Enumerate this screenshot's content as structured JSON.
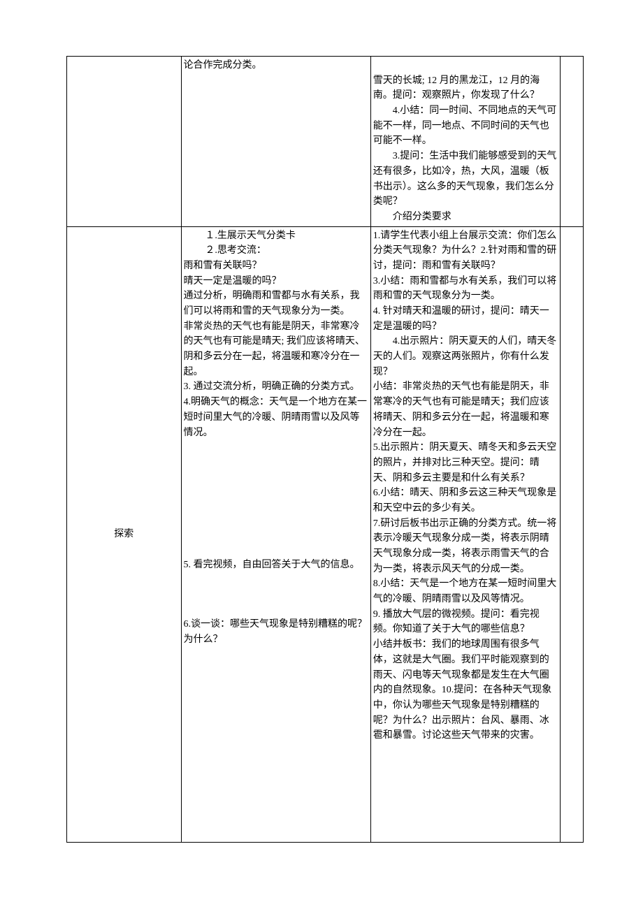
{
  "row1": {
    "col1": "",
    "col2_p1": "论合作完成分类。",
    "col3_p1": "雪天的长城; 12 月的黑龙江，12 月的海南。提问：观察照片，你发现了什么？",
    "col3_p2": "4.小结：同一时间、不同地点的天气可能不一样，同一地点、不同时间的天气也可能不一样。",
    "col3_p3": "3.提问：生活中我们能够感受到的天气还有很多，比如冷，热，大风，温暖（板书出示）。这么多的天气现象，我们怎么分类呢？",
    "col3_p4": "介绍分类要求",
    "col4": ""
  },
  "row2": {
    "col1": "探索",
    "col2": {
      "p1": "１.生展示天气分类卡",
      "p2": "２.思考交流：",
      "p3": "雨和雪有关联吗？",
      "p4": "晴天一定是温暖的吗？",
      "p5": "通过分析，明确雨和雪都与水有关系，我们可以将雨和雪的天气现象分为一类。",
      "p6": "非常炎热的天气也有能是阴天，非常寒冷的天气也有可能是晴天; 我们应该将晴天、阴和多云分在一起，将温暖和寒冷分在一起。",
      "p7": "3. 通过交流分析，明确正确的分类方式。",
      "p8": "4.明确天气的概念：天气是一个地方在某一短时间里大气的冷暖、阴晴雨雪以及风等情况。",
      "p9": "5. 看完视频，自由回答关于大气的信息。",
      "p10": "6.谈一谈：哪些天气现象是特别糟糕的呢？为什么？"
    },
    "col3": {
      "p1": "1.请学生代表小组上台展示交流：你们怎么分类天气现象？为什么？2.针对雨和雪的研讨，提问：雨和雪有关联吗？",
      "p2": "3.小结：雨和雪都与水有关系，我们可以将雨和雪的天气现象分为一类。",
      "p3": "4. 针对晴天和温暖的研讨，提问：晴天一定是温暖的吗？",
      "p4": "4.出示照片：阴天夏天的人们，晴天冬天的人们。观察这两张照片，你有什么发现？",
      "p5": "小结：非常炎热的天气也有能是阴天，非常寒冷的天气也有可能是晴天；我们应该将晴天、阴和多云分在一起，将温暖和寒冷分在一起。",
      "p6": "5.出示照片：阴天夏天、晴冬天和多云天空的照片，并排对比三种天空。提问：晴天、阴和多云主要是和什么有关系？",
      "p7": "6.小结：晴天、阴和多云这三种天气现象是和天空中云的多少有关。",
      "p8": "7.研讨后板书出示正确的分类方式。统一将表示冷暖天气现象分成一类，将表示阴晴天气现象分成一类，将表示雨雪天气的合为一类，将表示风天气的分成一类。",
      "p9": "8.小结：天气是一个地方在某一短时间里大气的冷暖、阴晴雨雪以及风等情况。",
      "p10": "9. 播放大气层的微视频。提问：看完视频。你知道了关于大气的哪些信息？",
      "p11": "小结并板书：我们的地球周围有很多气体，这就是大气圈。我们平时能观察到的雨天、闪电等天气现象都是发生在大气圈内的自然现象。10.提问：在各种天气现象中，你认为哪些天气现象是特别糟糕的呢？为什么？出示照片：台风、暴雨、冰雹和暴雪。讨论这些天气带来的灾害。"
    },
    "col4": ""
  }
}
